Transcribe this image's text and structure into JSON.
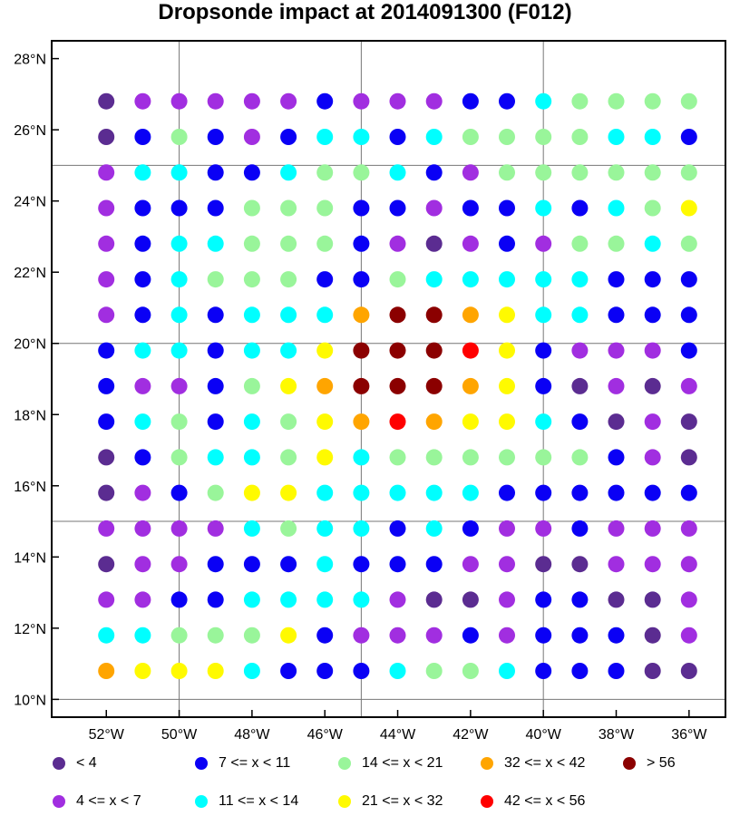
{
  "title": "Dropsonde impact at 2014091300 (F012)",
  "lat_labels": [
    "10°N",
    "12°N",
    "14°N",
    "16°N",
    "18°N",
    "20°N",
    "22°N",
    "24°N",
    "26°N",
    "28°N"
  ],
  "lon_labels": [
    "52°W",
    "50°W",
    "48°W",
    "46°W",
    "44°W",
    "42°W",
    "40°W",
    "38°W",
    "36°W"
  ],
  "colors": {
    "c0": "#5b2c91",
    "c1": "#a12ee0",
    "c2": "#0a00f5",
    "c3": "#00ffff",
    "c4": "#99f59a",
    "c5": "#fffa00",
    "c6": "#ffa500",
    "c7": "#ff0000",
    "c8": "#8b0000"
  },
  "legend": [
    {
      "cls": "c0",
      "label": "<  4"
    },
    {
      "cls": "c2",
      "label": "7 <= x < 11"
    },
    {
      "cls": "c4",
      "label": "14 <= x < 21"
    },
    {
      "cls": "c6",
      "label": "32 <= x < 42"
    },
    {
      "cls": "c8",
      "label": "> 56"
    },
    {
      "cls": "c1",
      "label": "4 <= x <  7"
    },
    {
      "cls": "c3",
      "label": "11 <= x < 14"
    },
    {
      "cls": "c5",
      "label": "21 <= x < 32"
    },
    {
      "cls": "c7",
      "label": "42 <= x < 56"
    }
  ],
  "chart_data": {
    "type": "scatter",
    "title": "Dropsonde impact at 2014091300 (F012)",
    "x_range_lon_W": [
      53.5,
      35
    ],
    "y_range_lat_N": [
      9.5,
      28.5
    ],
    "grid": true,
    "lons_W": [
      52,
      51,
      50,
      49,
      48,
      47,
      46,
      45,
      44,
      43,
      42,
      41,
      40,
      39,
      38,
      37,
      36
    ],
    "lats_N": [
      26.8,
      25.8,
      24.8,
      23.8,
      22.8,
      21.8,
      20.8,
      19.8,
      18.8,
      17.8,
      16.8,
      15.8,
      14.8,
      13.8,
      12.8,
      11.8,
      10.8
    ],
    "categories": [
      "<  4",
      "4 <= x <  7",
      "7 <= x < 11",
      "11 <= x < 14",
      "14 <= x < 21",
      "21 <= x < 32",
      "32 <= x < 42",
      "42 <= x < 56",
      "> 56"
    ],
    "grid_classes": [
      [
        0,
        1,
        1,
        1,
        1,
        1,
        2,
        1,
        1,
        1,
        2,
        2,
        3,
        4,
        4,
        4,
        4
      ],
      [
        0,
        2,
        4,
        2,
        1,
        2,
        3,
        3,
        2,
        3,
        4,
        4,
        4,
        4,
        3,
        3,
        2
      ],
      [
        1,
        3,
        3,
        2,
        2,
        3,
        4,
        4,
        3,
        2,
        1,
        4,
        4,
        4,
        4,
        4,
        4
      ],
      [
        1,
        2,
        2,
        2,
        4,
        4,
        4,
        2,
        2,
        1,
        2,
        2,
        3,
        2,
        3,
        4,
        5
      ],
      [
        1,
        2,
        3,
        3,
        4,
        4,
        4,
        2,
        1,
        0,
        1,
        2,
        1,
        4,
        4,
        3,
        4
      ],
      [
        1,
        2,
        3,
        4,
        4,
        4,
        2,
        2,
        4,
        3,
        3,
        3,
        3,
        3,
        2,
        2,
        2
      ],
      [
        1,
        2,
        3,
        2,
        3,
        3,
        3,
        6,
        8,
        8,
        6,
        5,
        3,
        3,
        2,
        2,
        2
      ],
      [
        2,
        3,
        3,
        2,
        3,
        3,
        5,
        8,
        8,
        8,
        7,
        5,
        2,
        1,
        1,
        1,
        2
      ],
      [
        2,
        1,
        1,
        2,
        4,
        5,
        6,
        8,
        8,
        8,
        6,
        5,
        2,
        0,
        1,
        0,
        1
      ],
      [
        2,
        3,
        4,
        2,
        3,
        4,
        5,
        6,
        7,
        6,
        5,
        5,
        3,
        2,
        0,
        1,
        0
      ],
      [
        0,
        2,
        4,
        3,
        3,
        4,
        5,
        3,
        4,
        4,
        4,
        4,
        4,
        4,
        2,
        1,
        0
      ],
      [
        0,
        1,
        2,
        4,
        5,
        5,
        3,
        3,
        3,
        3,
        3,
        2,
        2,
        2,
        2,
        2,
        2
      ],
      [
        1,
        1,
        1,
        1,
        3,
        4,
        3,
        3,
        2,
        3,
        2,
        1,
        1,
        2,
        1,
        1,
        1
      ],
      [
        0,
        1,
        1,
        2,
        2,
        2,
        3,
        2,
        2,
        2,
        1,
        1,
        0,
        0,
        1,
        1,
        1
      ],
      [
        1,
        1,
        2,
        2,
        3,
        3,
        3,
        3,
        1,
        0,
        0,
        1,
        2,
        2,
        0,
        0,
        1
      ],
      [
        3,
        3,
        4,
        4,
        4,
        5,
        2,
        1,
        1,
        1,
        2,
        1,
        2,
        2,
        2,
        0,
        1
      ],
      [
        6,
        5,
        5,
        5,
        3,
        2,
        2,
        2,
        3,
        4,
        4,
        3,
        2,
        2,
        2,
        0,
        0
      ]
    ]
  }
}
